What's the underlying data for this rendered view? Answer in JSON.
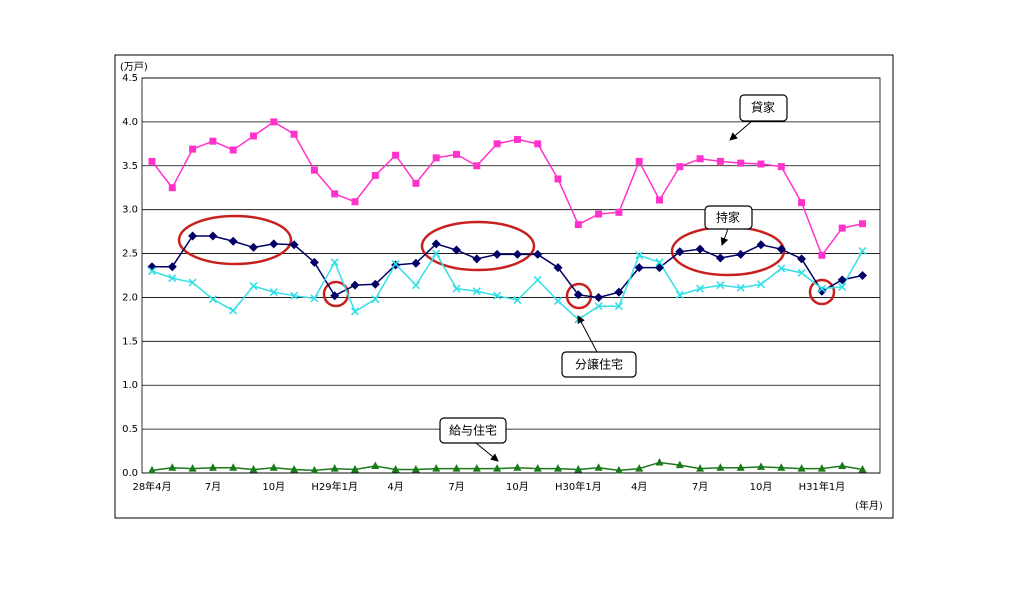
{
  "chart_data": {
    "type": "line",
    "y_unit": "(万戸)",
    "x_unit": "(年月)",
    "categories": [
      "28年4月",
      null,
      null,
      "7月",
      null,
      null,
      "10月",
      null,
      null,
      "H29年1月",
      null,
      null,
      "4月",
      null,
      null,
      "7月",
      null,
      null,
      "10月",
      null,
      null,
      "H30年1月",
      null,
      null,
      "4月",
      null,
      null,
      "7月",
      null,
      null,
      "10月",
      null,
      null,
      "H31年1月",
      null,
      null
    ],
    "ylim": [
      0,
      4.5
    ],
    "yticks": [
      {
        "value": 0,
        "label": "0.0"
      },
      0.5,
      {
        "value": 1,
        "label": "1.0"
      },
      1.5,
      {
        "value": 2,
        "label": "2.0"
      },
      2.5,
      {
        "value": 3,
        "label": "3.0"
      },
      3.5,
      {
        "value": 4,
        "label": "4.0"
      },
      4.5
    ],
    "grid": true,
    "series": [
      {
        "name": "貸家",
        "color": "#ff33cc",
        "marker": "square",
        "values": [
          3.55,
          3.25,
          3.69,
          3.78,
          3.68,
          3.84,
          4.0,
          3.86,
          3.45,
          3.18,
          3.09,
          3.39,
          3.62,
          3.3,
          3.59,
          3.63,
          3.5,
          3.75,
          3.8,
          3.75,
          3.35,
          2.83,
          2.95,
          2.97,
          3.55,
          3.11,
          3.49,
          3.58,
          3.55,
          3.53,
          3.52,
          3.49,
          3.08,
          2.48,
          2.79,
          2.84
        ]
      },
      {
        "name": "持家",
        "color": "#000066",
        "marker": "diamond",
        "values": [
          2.35,
          2.35,
          2.7,
          2.7,
          2.64,
          2.57,
          2.61,
          2.6,
          2.4,
          2.02,
          2.14,
          2.15,
          2.37,
          2.39,
          2.61,
          2.54,
          2.44,
          2.49,
          2.49,
          2.49,
          2.34,
          2.03,
          2.0,
          2.06,
          2.34,
          2.34,
          2.52,
          2.55,
          2.45,
          2.49,
          2.6,
          2.55,
          2.44,
          2.07,
          2.2,
          2.25
        ]
      },
      {
        "name": "分譲住宅",
        "color": "#33e0e8",
        "marker": "x",
        "values": [
          2.3,
          2.22,
          2.17,
          1.98,
          1.85,
          2.13,
          2.06,
          2.02,
          1.99,
          2.4,
          1.84,
          1.98,
          2.38,
          2.14,
          2.5,
          2.1,
          2.07,
          2.02,
          1.97,
          2.2,
          1.96,
          1.75,
          1.9,
          1.9,
          2.48,
          2.4,
          2.03,
          2.1,
          2.14,
          2.11,
          2.15,
          2.33,
          2.28,
          2.1,
          2.12,
          2.53
        ]
      },
      {
        "name": "給与住宅",
        "color": "#1a7a1a",
        "marker": "triangle",
        "values": [
          0.03,
          0.06,
          0.05,
          0.06,
          0.06,
          0.04,
          0.06,
          0.04,
          0.03,
          0.05,
          0.04,
          0.08,
          0.04,
          0.04,
          0.05,
          0.05,
          0.05,
          0.05,
          0.06,
          0.05,
          0.05,
          0.04,
          0.06,
          0.03,
          0.05,
          0.12,
          0.09,
          0.05,
          0.06,
          0.06,
          0.07,
          0.06,
          0.05,
          0.05,
          0.08,
          0.04
        ]
      }
    ]
  }
}
